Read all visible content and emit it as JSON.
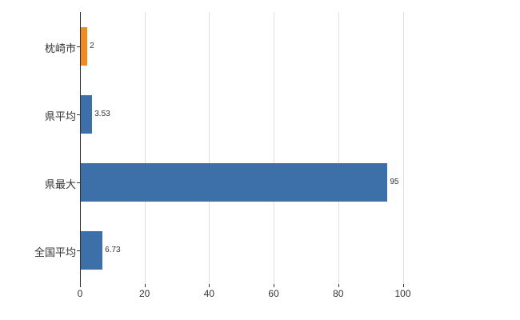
{
  "chart_data": {
    "type": "bar",
    "orientation": "horizontal",
    "title": "",
    "categories": [
      "枕崎市",
      "県平均",
      "県最大",
      "全国平均"
    ],
    "values": [
      2,
      3.53,
      95,
      6.73
    ],
    "value_labels": [
      "2",
      "3.53",
      "95",
      "6.73"
    ],
    "bar_colors": [
      "#ef8b22",
      "#3d6fa8",
      "#3d6fa8",
      "#3d6fa8"
    ],
    "x_ticks": [
      0,
      20,
      40,
      60,
      80,
      100
    ],
    "xlim": [
      0,
      114
    ],
    "grid": true,
    "legend": "none"
  },
  "colors": {
    "background": "#ffffff",
    "grid": "#e0e0e0",
    "axis": "#333333",
    "text": "#333333",
    "highlight_bar": "#ef8b22",
    "default_bar": "#3d6fa8"
  }
}
